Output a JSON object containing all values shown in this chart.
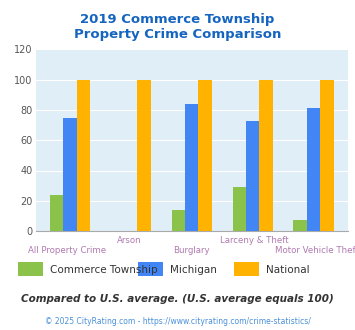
{
  "title": "2019 Commerce Township\nProperty Crime Comparison",
  "categories": [
    "All Property Crime",
    "Arson",
    "Burglary",
    "Larceny & Theft",
    "Motor Vehicle Theft"
  ],
  "commerce_township": [
    24,
    0,
    14,
    29,
    7
  ],
  "michigan": [
    75,
    0,
    84,
    73,
    81
  ],
  "national": [
    100,
    100,
    100,
    100,
    100
  ],
  "colors": {
    "commerce_township": "#8bc34a",
    "michigan": "#4285f4",
    "national": "#ffb300"
  },
  "ylim": [
    0,
    120
  ],
  "yticks": [
    0,
    20,
    40,
    60,
    80,
    100,
    120
  ],
  "title_color": "#1565c0",
  "xlabel_color": "#b07ab0",
  "footer_text": "Compared to U.S. average. (U.S. average equals 100)",
  "copyright_text": "© 2025 CityRating.com - https://www.cityrating.com/crime-statistics/",
  "background_color": "#e0eef8",
  "bar_width": 0.22,
  "legend_labels": [
    "Commerce Township",
    "Michigan",
    "National"
  ]
}
